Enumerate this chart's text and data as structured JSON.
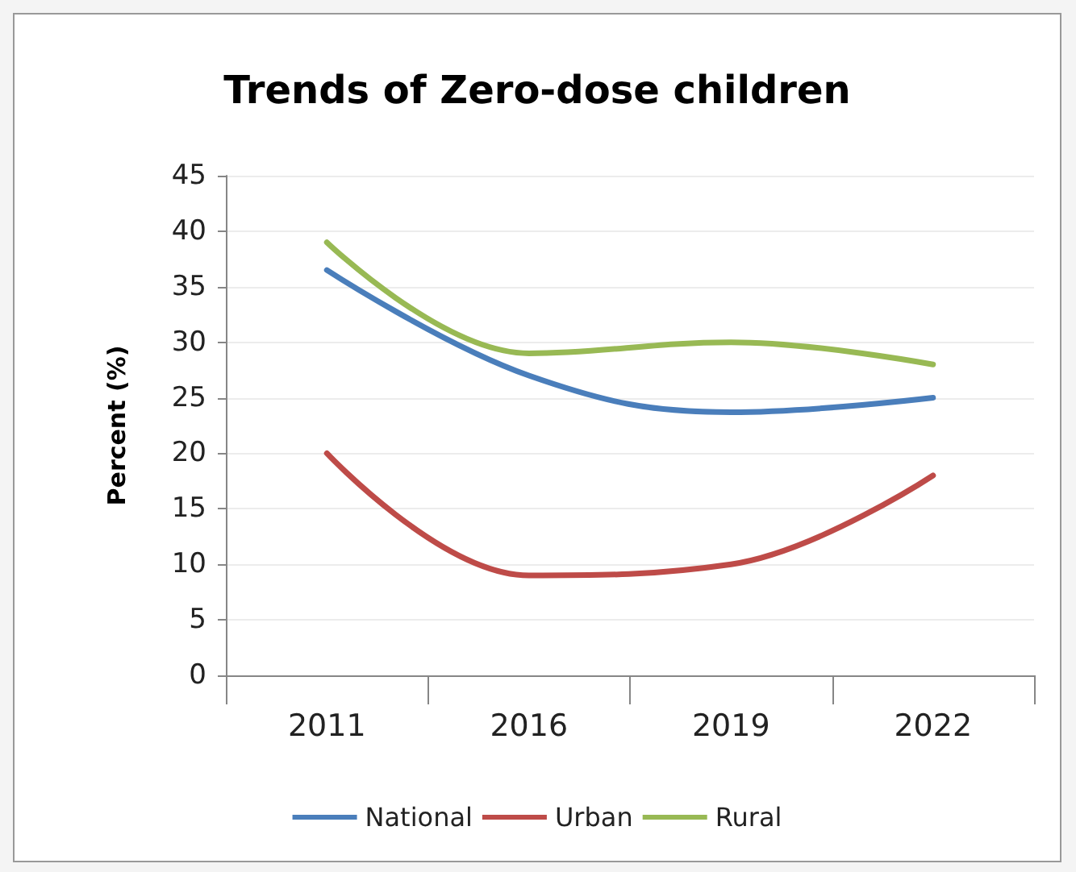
{
  "chart_data": {
    "type": "line",
    "title": "Trends of Zero-dose children",
    "ylabel": "Percent (%)",
    "categories": [
      "2011",
      "2016",
      "2019",
      "2022"
    ],
    "series": [
      {
        "name": "National",
        "color": "#4a7ebb",
        "values": [
          36.5,
          27,
          23.7,
          25
        ]
      },
      {
        "name": "Urban",
        "color": "#be4b48",
        "values": [
          20,
          9,
          10,
          18
        ]
      },
      {
        "name": "Rural",
        "color": "#98b954",
        "values": [
          39,
          29,
          30,
          28
        ]
      }
    ],
    "ylim": [
      0,
      45
    ],
    "yticks": [
      0,
      5,
      10,
      15,
      20,
      25,
      30,
      35,
      40,
      45
    ],
    "grid": "y",
    "legend": "bottom",
    "marker": "none",
    "line_style": "solid"
  }
}
